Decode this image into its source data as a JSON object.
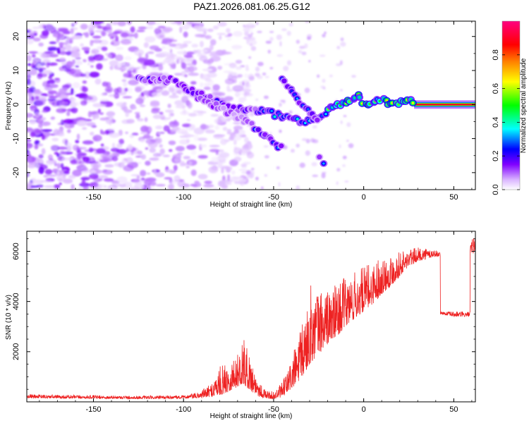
{
  "title": "PAZ1.2026.081.06.25.G12",
  "colors": {
    "line": "#ee2222",
    "frame": "#000000",
    "background": "#ffffff"
  },
  "chart_data": [
    {
      "type": "heatmap",
      "name": "spectrogram",
      "xlabel": "Height of straight line (km)",
      "ylabel": "Frequency (Hz)",
      "xlim": [
        -187,
        62
      ],
      "ylim": [
        -25,
        24.5
      ],
      "xticks": [
        -150,
        -100,
        -50,
        0,
        50
      ],
      "xtick_labels": [
        "-150",
        "-100",
        "-50",
        "0",
        "50"
      ],
      "yticks": [
        -20,
        -10,
        0,
        10,
        20
      ],
      "ytick_labels": [
        "-20",
        "-10",
        "0",
        "10",
        "20"
      ],
      "colorbar": {
        "label": "Normalized spectral amplitude",
        "range": [
          0,
          1
        ],
        "ticks": [
          0.0,
          0.2,
          0.4,
          0.6,
          0.8
        ],
        "tick_labels": [
          "0.0",
          "0.2",
          "0.4",
          "0.6",
          "0.8"
        ],
        "stops": [
          "#ffffff",
          "#d9b3ff",
          "#8000ff",
          "#0000ff",
          "#00ffff",
          "#00ff00",
          "#ffff00",
          "#ff8000",
          "#ff0000",
          "#ff0080"
        ]
      },
      "ridges": [
        {
          "name": "main",
          "points": [
            [
              -125,
              7.5
            ],
            [
              -115,
              7.5
            ],
            [
              -105,
              7
            ],
            [
              -95,
              4
            ],
            [
              -85,
              1.5
            ],
            [
              -75,
              -1
            ],
            [
              -65,
              -1.5
            ],
            [
              -55,
              -2
            ],
            [
              -45,
              -3.5
            ],
            [
              -35,
              -5
            ],
            [
              -25,
              -4
            ],
            [
              -18,
              -0.5
            ],
            [
              -10,
              0.5
            ],
            [
              -3,
              2.5
            ],
            [
              2,
              -0.5
            ],
            [
              8,
              1.5
            ],
            [
              15,
              0.5
            ],
            [
              25,
              1
            ],
            [
              30,
              0
            ],
            [
              62,
              0
            ]
          ]
        },
        {
          "name": "descending",
          "points": [
            [
              -92,
              2
            ],
            [
              -80,
              -1
            ],
            [
              -65,
              -5
            ],
            [
              -55,
              -9
            ],
            [
              -45,
              -13
            ]
          ]
        },
        {
          "name": "upper",
          "points": [
            [
              -45,
              7.5
            ],
            [
              -38,
              2.5
            ],
            [
              -30,
              -2
            ],
            [
              -25,
              -4
            ]
          ]
        },
        {
          "name": "lower-spot",
          "points": [
            [
              -24,
              -15
            ],
            [
              -22,
              -17.5
            ]
          ]
        }
      ]
    },
    {
      "type": "line",
      "name": "snr",
      "xlabel": "Height of straight line (km)",
      "ylabel": "SNR (10 * v/v)",
      "xlim": [
        -187,
        62
      ],
      "ylim": [
        0,
        6800
      ],
      "xticks": [
        -150,
        -100,
        -50,
        0,
        50
      ],
      "xtick_labels": [
        "-150",
        "-100",
        "-50",
        "0",
        "50"
      ],
      "yticks": [
        2000,
        4000,
        6000
      ],
      "ytick_labels": [
        "2000",
        "4000",
        "6000"
      ],
      "series": [
        {
          "name": "SNR",
          "envelope": {
            "x": [
              -187,
              -150,
              -120,
              -100,
              -92,
              -85,
              -80,
              -75,
              -70,
              -67,
              -62,
              -58,
              -55,
              -50,
              -45,
              -40,
              -35,
              -32,
              -30,
              -25,
              -20,
              -15,
              -10,
              -5,
              0,
              5,
              10,
              15,
              20,
              25,
              30,
              35,
              40,
              42.5,
              42.6,
              50,
              59,
              59.1,
              62
            ],
            "low": [
              150,
              130,
              120,
              130,
              150,
              200,
              250,
              400,
              600,
              700,
              400,
              200,
              150,
              100,
              200,
              500,
              900,
              1200,
              1500,
              1900,
              2300,
              2600,
              3000,
              3300,
              3600,
              3900,
              4300,
              4600,
              5000,
              5400,
              5600,
              5700,
              5800,
              5800,
              3500,
              3400,
              3400,
              5800,
              6000
            ],
            "high": [
              300,
              260,
              240,
              260,
              380,
              700,
              1400,
              1600,
              1900,
              2600,
              1600,
              900,
              500,
              400,
              800,
              1800,
              2900,
              3700,
              4700,
              4500,
              4500,
              4700,
              5000,
              5200,
              5400,
              5600,
              5800,
              5900,
              6000,
              6100,
              6150,
              6150,
              6050,
              5950,
              3600,
              3600,
              3600,
              6300,
              6800
            ]
          }
        }
      ]
    }
  ]
}
